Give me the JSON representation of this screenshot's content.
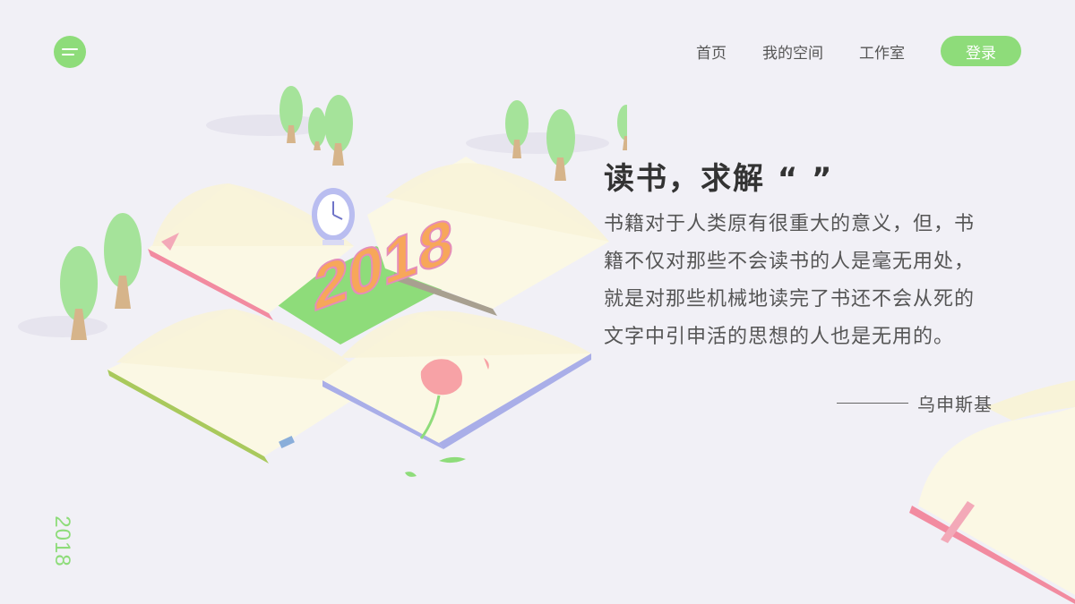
{
  "nav": {
    "items": [
      {
        "label": "首页"
      },
      {
        "label": "我的空间"
      },
      {
        "label": "工作室"
      }
    ],
    "login_label": "登录"
  },
  "quote": {
    "heading": "读书，求解 “ ”",
    "lines": [
      "书籍对于人类原有很重大的意义，但，书",
      "籍不仅对那些不会读书的人是毫无用处，",
      "就是对那些机械地读完了书还不会从死的",
      "文字中引申活的思想的人也是无用的。"
    ],
    "author": "乌申斯基"
  },
  "illustration": {
    "year_sign": "2018"
  },
  "side_year": "2018",
  "icons": {
    "menu": "menu-icon"
  },
  "colors": {
    "accent": "#8edc7a",
    "background": "#f1f0f6",
    "text": "#555555",
    "heading": "#333333"
  }
}
